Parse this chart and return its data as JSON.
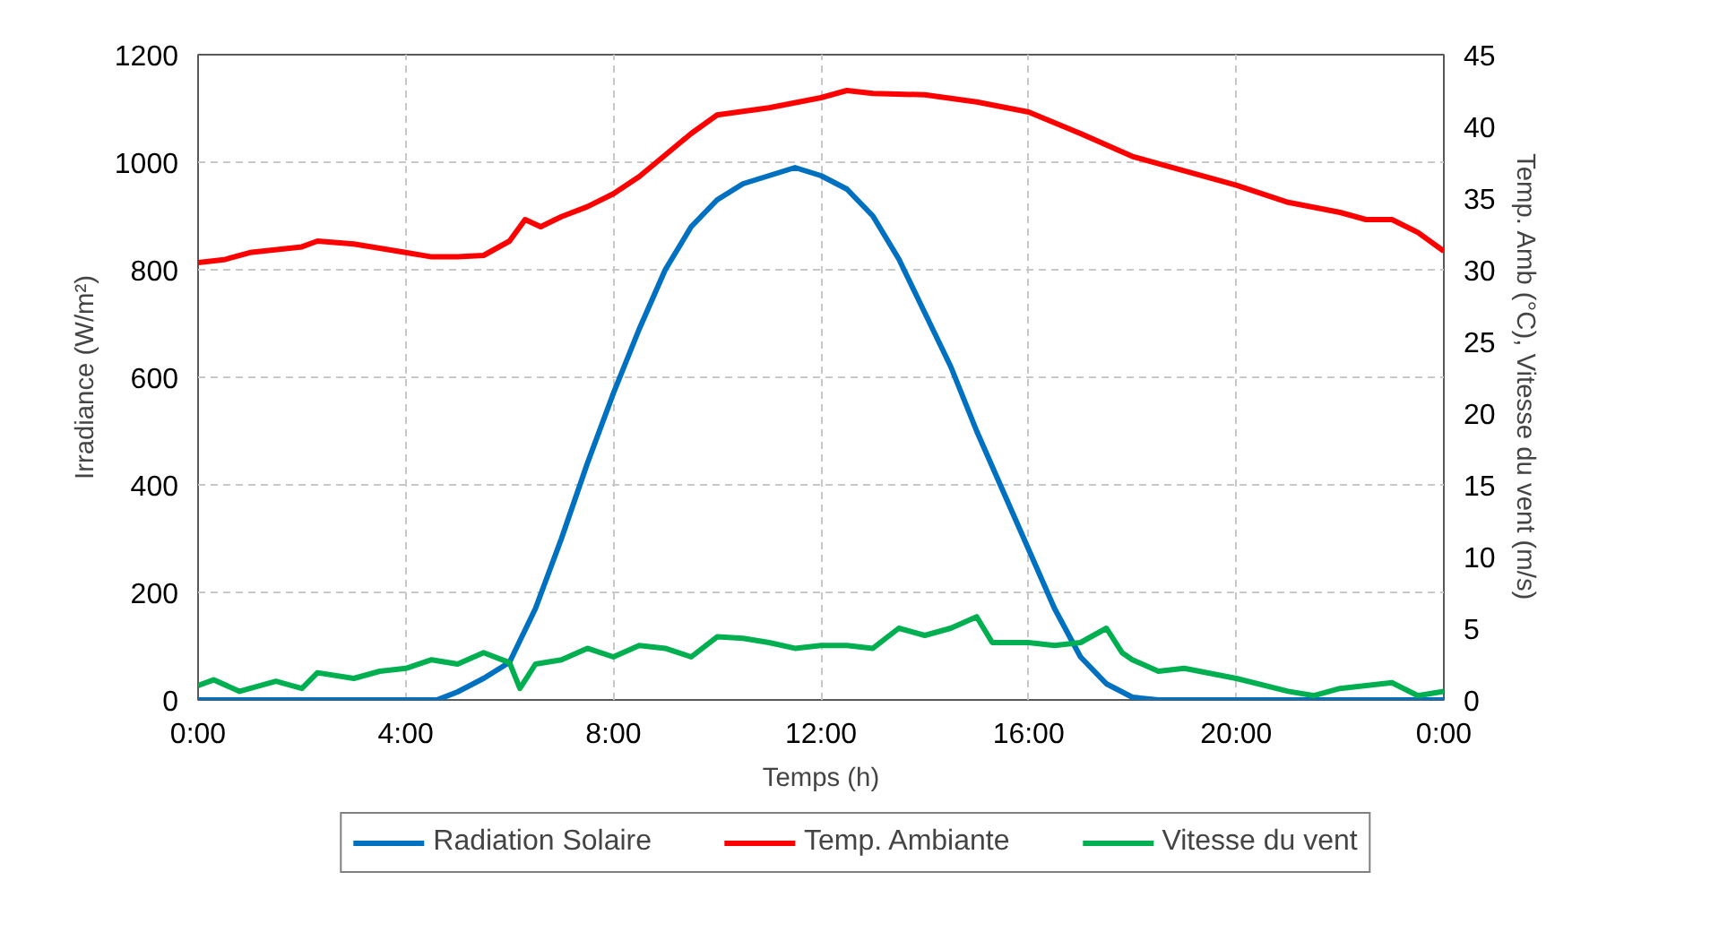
{
  "chart_data": {
    "type": "line",
    "xlabel": "Temps (h)",
    "ylabel": "Irradiance (W/m²)",
    "y2label": "Temp. Amb (°C), Vitesse du vent (m/s)",
    "xlim": [
      0,
      24
    ],
    "xticks": [
      {
        "value": 0,
        "label": "0:00"
      },
      {
        "value": 4,
        "label": "4:00"
      },
      {
        "value": 8,
        "label": "8:00"
      },
      {
        "value": 12,
        "label": "12:00"
      },
      {
        "value": 16,
        "label": "16:00"
      },
      {
        "value": 20,
        "label": "20:00"
      },
      {
        "value": 24,
        "label": "0:00"
      }
    ],
    "ylim": [
      0,
      1200
    ],
    "yticks": [
      0,
      200,
      400,
      600,
      800,
      1000,
      1200
    ],
    "y2lim": [
      0,
      45
    ],
    "y2ticks": [
      0,
      5,
      10,
      15,
      20,
      25,
      30,
      35,
      40,
      45
    ],
    "grid": true,
    "legend": "bottom",
    "marker": "none",
    "line_style": "solid",
    "series": [
      {
        "name": "Radiation Solaire",
        "color": "#0070c0",
        "x": [
          0,
          4.6,
          5,
          5.5,
          6,
          6.5,
          7,
          7.5,
          8,
          8.5,
          9,
          9.5,
          10,
          10.5,
          11,
          11.5,
          12,
          12.5,
          13,
          13.5,
          14,
          14.5,
          15,
          15.5,
          16,
          16.5,
          17,
          17.5,
          18,
          18.5,
          24
        ],
        "values": [
          0,
          0,
          15,
          40,
          70,
          170,
          300,
          440,
          570,
          690,
          800,
          880,
          930,
          960,
          975,
          990,
          975,
          950,
          900,
          820,
          720,
          620,
          500,
          390,
          280,
          170,
          80,
          30,
          5,
          0,
          0
        ]
      },
      {
        "name": "Temp. Ambiante",
        "color": "#ff0000",
        "axis": "y2",
        "x": [
          0,
          0.5,
          1,
          2,
          2.3,
          3,
          4,
          4.5,
          5,
          5.5,
          6,
          6.3,
          6.6,
          7,
          7.5,
          8,
          8.5,
          9,
          9.5,
          10,
          11,
          12,
          12.5,
          13,
          14,
          15,
          16,
          17,
          18,
          19,
          20,
          21,
          22,
          22.5,
          23,
          23.5,
          24
        ],
        "values": [
          30.5,
          30.7,
          31.2,
          31.6,
          32.0,
          31.8,
          31.2,
          30.9,
          30.9,
          31.0,
          32.0,
          33.5,
          33.0,
          33.7,
          34.4,
          35.3,
          36.5,
          38.0,
          39.5,
          40.8,
          41.3,
          42.0,
          42.5,
          42.3,
          42.2,
          41.7,
          41.0,
          39.5,
          37.9,
          36.9,
          35.9,
          34.7,
          34.0,
          33.5,
          33.5,
          32.6,
          31.3
        ]
      },
      {
        "name": "Vitesse du vent",
        "color": "#00b050",
        "axis": "y2",
        "x": [
          0,
          0.3,
          0.8,
          1.5,
          2,
          2.3,
          3,
          3.5,
          4,
          4.5,
          5,
          5.5,
          6,
          6.2,
          6.5,
          7,
          7.5,
          8,
          8.5,
          9,
          9.5,
          10,
          10.5,
          11,
          11.5,
          12,
          12.5,
          13,
          13.5,
          14,
          14.5,
          15,
          15.3,
          16,
          16.5,
          17,
          17.5,
          17.8,
          18,
          18.5,
          19,
          20,
          21,
          21.5,
          22,
          22.5,
          23,
          23.5,
          24
        ],
        "values": [
          1.0,
          1.4,
          0.6,
          1.3,
          0.8,
          1.9,
          1.5,
          2.0,
          2.2,
          2.8,
          2.5,
          3.3,
          2.6,
          0.8,
          2.5,
          2.8,
          3.6,
          3.0,
          3.8,
          3.6,
          3.0,
          4.4,
          4.3,
          4.0,
          3.6,
          3.8,
          3.8,
          3.6,
          5.0,
          4.5,
          5.0,
          5.8,
          4.0,
          4.0,
          3.8,
          4.0,
          5.0,
          3.3,
          2.8,
          2.0,
          2.2,
          1.5,
          0.6,
          0.3,
          0.8,
          1.0,
          1.2,
          0.3,
          0.6
        ]
      }
    ]
  }
}
